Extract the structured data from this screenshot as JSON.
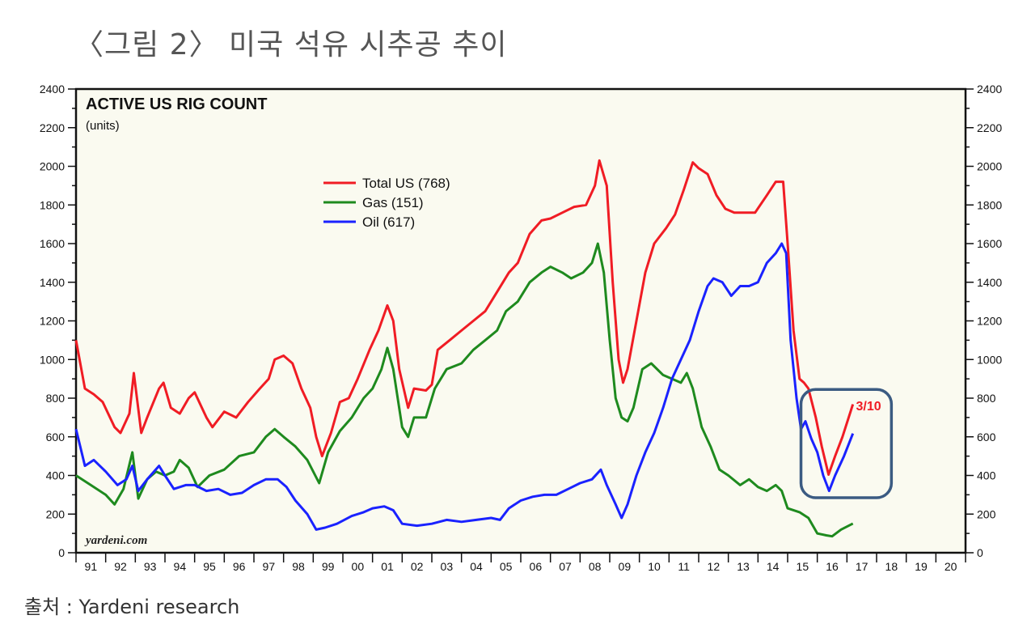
{
  "figure_title": "〈그림 2〉 미국 석유 시추공 추이",
  "source": "출처 : Yardeni research",
  "colors": {
    "total": "#f01c24",
    "gas": "#1e8a1e",
    "oil": "#1a22ff",
    "plot_bg": "#fafaf0",
    "highlight_box": "#3b5b82"
  },
  "chart_data": {
    "type": "line",
    "title": "ACTIVE US RIG COUNT",
    "subtitle": "(units)",
    "watermark": "yardeni.com",
    "xlim": [
      1991,
      2021
    ],
    "ylim": [
      0,
      2400
    ],
    "yticks": [
      0,
      200,
      400,
      600,
      800,
      1000,
      1200,
      1400,
      1600,
      1800,
      2000,
      2200,
      2400
    ],
    "xtick_labels": [
      "91",
      "92",
      "93",
      "94",
      "95",
      "96",
      "97",
      "98",
      "99",
      "00",
      "01",
      "02",
      "03",
      "04",
      "05",
      "06",
      "07",
      "08",
      "09",
      "10",
      "11",
      "12",
      "13",
      "14",
      "15",
      "16",
      "17",
      "18",
      "19",
      "20"
    ],
    "legend_placement": "top-center",
    "grid": false,
    "annotation": {
      "text": "3/10",
      "x": 2017.25,
      "y": 780
    },
    "highlight_box": {
      "x": [
        2015.45,
        2018.5
      ],
      "y": [
        285,
        845
      ]
    },
    "series": [
      {
        "name": "Total US (768)",
        "key": "total",
        "x": [
          1991.0,
          1991.3,
          1991.6,
          1991.9,
          1992.3,
          1992.5,
          1992.8,
          1992.95,
          1993.2,
          1993.4,
          1993.8,
          1993.95,
          1994.2,
          1994.5,
          1994.8,
          1995.0,
          1995.4,
          1995.6,
          1996.0,
          1996.4,
          1996.8,
          1997.2,
          1997.5,
          1997.7,
          1998.0,
          1998.3,
          1998.6,
          1998.9,
          1999.1,
          1999.3,
          1999.6,
          1999.9,
          2000.2,
          2000.5,
          2000.9,
          2001.2,
          2001.5,
          2001.7,
          2001.9,
          2002.2,
          2002.4,
          2002.8,
          2003.0,
          2003.2,
          2003.6,
          2004.0,
          2004.4,
          2004.8,
          2005.2,
          2005.6,
          2005.9,
          2006.3,
          2006.7,
          2007.0,
          2007.4,
          2007.8,
          2008.2,
          2008.5,
          2008.65,
          2008.9,
          2009.1,
          2009.3,
          2009.45,
          2009.6,
          2009.9,
          2010.2,
          2010.5,
          2010.9,
          2011.2,
          2011.5,
          2011.8,
          2012.0,
          2012.3,
          2012.6,
          2012.9,
          2013.2,
          2013.6,
          2013.9,
          2014.3,
          2014.6,
          2014.85,
          2015.0,
          2015.2,
          2015.4,
          2015.55,
          2015.7,
          2015.95,
          2016.15,
          2016.38,
          2016.6,
          2016.85,
          2017.2
        ],
        "y": [
          1100,
          850,
          820,
          780,
          650,
          620,
          720,
          930,
          620,
          700,
          850,
          880,
          750,
          720,
          800,
          830,
          700,
          650,
          730,
          700,
          780,
          850,
          900,
          1000,
          1020,
          980,
          850,
          750,
          600,
          500,
          620,
          780,
          800,
          900,
          1050,
          1150,
          1280,
          1200,
          950,
          750,
          850,
          840,
          870,
          1050,
          1100,
          1150,
          1200,
          1250,
          1350,
          1450,
          1500,
          1650,
          1720,
          1730,
          1760,
          1790,
          1800,
          1900,
          2030,
          1900,
          1400,
          1000,
          880,
          950,
          1200,
          1450,
          1600,
          1680,
          1750,
          1880,
          2020,
          1990,
          1960,
          1850,
          1780,
          1760,
          1760,
          1760,
          1850,
          1920,
          1920,
          1600,
          1150,
          900,
          880,
          850,
          700,
          550,
          404,
          500,
          600,
          768
        ]
      },
      {
        "name": "Gas (151)",
        "key": "gas",
        "x": [
          1991.0,
          1991.5,
          1992.0,
          1992.3,
          1992.6,
          1992.9,
          1993.1,
          1993.4,
          1993.7,
          1994.0,
          1994.3,
          1994.5,
          1994.8,
          1995.1,
          1995.5,
          1996.0,
          1996.5,
          1997.0,
          1997.4,
          1997.7,
          1998.0,
          1998.4,
          1998.8,
          1999.2,
          1999.5,
          1999.9,
          2000.3,
          2000.7,
          2001.0,
          2001.3,
          2001.5,
          2001.7,
          2002.0,
          2002.2,
          2002.4,
          2002.8,
          2003.1,
          2003.5,
          2004.0,
          2004.4,
          2004.8,
          2005.2,
          2005.5,
          2005.9,
          2006.3,
          2006.7,
          2007.0,
          2007.4,
          2007.7,
          2008.1,
          2008.4,
          2008.6,
          2008.8,
          2009.0,
          2009.2,
          2009.4,
          2009.6,
          2009.8,
          2010.1,
          2010.4,
          2010.8,
          2011.1,
          2011.4,
          2011.6,
          2011.8,
          2012.1,
          2012.4,
          2012.7,
          2013.0,
          2013.4,
          2013.7,
          2014.0,
          2014.3,
          2014.6,
          2014.8,
          2015.0,
          2015.4,
          2015.7,
          2016.0,
          2016.3,
          2016.5,
          2016.8,
          2017.2
        ],
        "y": [
          400,
          350,
          300,
          250,
          330,
          520,
          280,
          380,
          420,
          400,
          420,
          480,
          440,
          340,
          400,
          430,
          500,
          520,
          600,
          640,
          600,
          550,
          480,
          360,
          520,
          630,
          700,
          800,
          850,
          950,
          1060,
          950,
          650,
          600,
          700,
          700,
          850,
          950,
          980,
          1050,
          1100,
          1150,
          1250,
          1300,
          1400,
          1450,
          1480,
          1450,
          1420,
          1450,
          1500,
          1600,
          1450,
          1100,
          800,
          700,
          680,
          750,
          950,
          980,
          920,
          900,
          880,
          930,
          850,
          650,
          550,
          430,
          400,
          350,
          380,
          340,
          320,
          350,
          320,
          230,
          210,
          180,
          100,
          90,
          85,
          120,
          151
        ]
      },
      {
        "name": "Oil (617)",
        "key": "oil",
        "x": [
          1991.0,
          1991.3,
          1991.6,
          1992.0,
          1992.4,
          1992.7,
          1992.9,
          1993.1,
          1993.4,
          1993.8,
          1994.0,
          1994.3,
          1994.7,
          1995.0,
          1995.4,
          1995.8,
          1996.2,
          1996.6,
          1997.0,
          1997.4,
          1997.8,
          1998.1,
          1998.4,
          1998.8,
          1999.1,
          1999.4,
          1999.8,
          2000.3,
          2000.7,
          2001.0,
          2001.4,
          2001.7,
          2002.0,
          2002.5,
          2003.0,
          2003.5,
          2004.0,
          2004.5,
          2005.0,
          2005.3,
          2005.6,
          2006.0,
          2006.4,
          2006.8,
          2007.2,
          2007.6,
          2008.0,
          2008.4,
          2008.7,
          2008.9,
          2009.2,
          2009.4,
          2009.6,
          2009.9,
          2010.2,
          2010.5,
          2010.8,
          2011.1,
          2011.4,
          2011.7,
          2012.0,
          2012.3,
          2012.5,
          2012.8,
          2013.1,
          2013.4,
          2013.7,
          2014.0,
          2014.3,
          2014.6,
          2014.8,
          2014.95,
          2015.1,
          2015.3,
          2015.45,
          2015.6,
          2015.8,
          2016.0,
          2016.2,
          2016.4,
          2016.6,
          2016.9,
          2017.2
        ],
        "y": [
          640,
          450,
          480,
          420,
          350,
          380,
          450,
          320,
          380,
          450,
          400,
          330,
          350,
          350,
          320,
          330,
          300,
          310,
          350,
          380,
          380,
          340,
          270,
          200,
          120,
          130,
          150,
          190,
          210,
          230,
          240,
          220,
          150,
          140,
          150,
          170,
          160,
          170,
          180,
          170,
          230,
          270,
          290,
          300,
          300,
          330,
          360,
          380,
          430,
          350,
          250,
          180,
          250,
          400,
          520,
          620,
          750,
          900,
          1000,
          1100,
          1250,
          1380,
          1420,
          1400,
          1330,
          1380,
          1380,
          1400,
          1500,
          1550,
          1600,
          1550,
          1100,
          800,
          640,
          680,
          590,
          520,
          400,
          320,
          400,
          500,
          617
        ]
      }
    ]
  }
}
